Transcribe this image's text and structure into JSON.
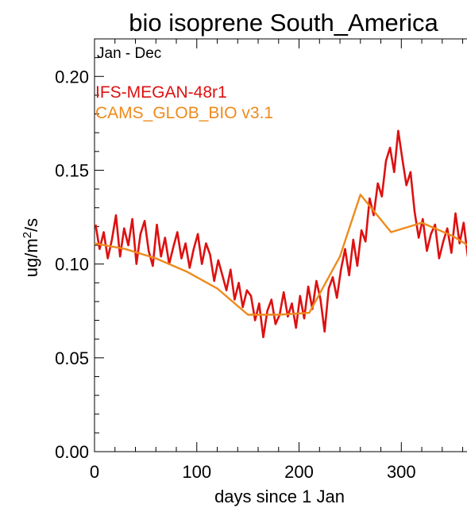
{
  "chart_data": {
    "type": "line",
    "title": "bio isoprene South_America",
    "subtitle": "Jan - Dec",
    "xlabel": "days since 1 Jan",
    "ylabel": "ug/m²/s",
    "xlim": [
      0,
      365
    ],
    "ylim": [
      0.0,
      0.22
    ],
    "x_ticks": [
      "0",
      "100",
      "200",
      "300"
    ],
    "y_ticks": [
      "0.00",
      "0.05",
      "0.10",
      "0.15",
      "0.20"
    ],
    "grid": false,
    "legend_position": "top-left",
    "series": [
      {
        "name": "IFS-MEGAN-48r1",
        "color": "#dd1111",
        "x": [
          1,
          5,
          9,
          13,
          17,
          21,
          25,
          29,
          33,
          37,
          41,
          45,
          49,
          53,
          57,
          61,
          65,
          69,
          73,
          77,
          81,
          85,
          89,
          93,
          97,
          101,
          105,
          109,
          113,
          117,
          121,
          125,
          129,
          133,
          137,
          141,
          145,
          149,
          153,
          157,
          161,
          165,
          169,
          173,
          177,
          181,
          185,
          189,
          193,
          197,
          201,
          205,
          209,
          213,
          217,
          221,
          225,
          229,
          233,
          237,
          241,
          245,
          249,
          253,
          257,
          261,
          265,
          269,
          273,
          277,
          281,
          285,
          289,
          293,
          297,
          301,
          305,
          309,
          313,
          317,
          321,
          325,
          329,
          333,
          337,
          341,
          345,
          349,
          353,
          357,
          361,
          365
        ],
        "values": [
          0.121,
          0.108,
          0.117,
          0.103,
          0.113,
          0.126,
          0.104,
          0.119,
          0.11,
          0.124,
          0.1,
          0.116,
          0.123,
          0.107,
          0.099,
          0.121,
          0.104,
          0.114,
          0.1,
          0.109,
          0.117,
          0.103,
          0.111,
          0.098,
          0.108,
          0.116,
          0.1,
          0.111,
          0.105,
          0.091,
          0.102,
          0.094,
          0.086,
          0.097,
          0.081,
          0.09,
          0.077,
          0.086,
          0.083,
          0.07,
          0.079,
          0.061,
          0.075,
          0.081,
          0.068,
          0.073,
          0.085,
          0.072,
          0.079,
          0.066,
          0.083,
          0.071,
          0.088,
          0.076,
          0.091,
          0.081,
          0.064,
          0.087,
          0.093,
          0.082,
          0.097,
          0.108,
          0.094,
          0.113,
          0.099,
          0.118,
          0.112,
          0.135,
          0.126,
          0.143,
          0.136,
          0.155,
          0.162,
          0.149,
          0.171,
          0.156,
          0.142,
          0.149,
          0.128,
          0.114,
          0.124,
          0.107,
          0.116,
          0.121,
          0.103,
          0.112,
          0.119,
          0.106,
          0.127,
          0.111,
          0.122,
          0.104
        ]
      },
      {
        "name": "CAMS_GLOB_BIO v3.1",
        "color": "#ee8a1c",
        "x": [
          0,
          30,
          60,
          90,
          120,
          150,
          180,
          210,
          240,
          260,
          290,
          320,
          350,
          365
        ],
        "values": [
          0.111,
          0.108,
          0.103,
          0.096,
          0.087,
          0.073,
          0.073,
          0.074,
          0.104,
          0.137,
          0.117,
          0.122,
          0.115,
          0.11
        ]
      }
    ]
  }
}
